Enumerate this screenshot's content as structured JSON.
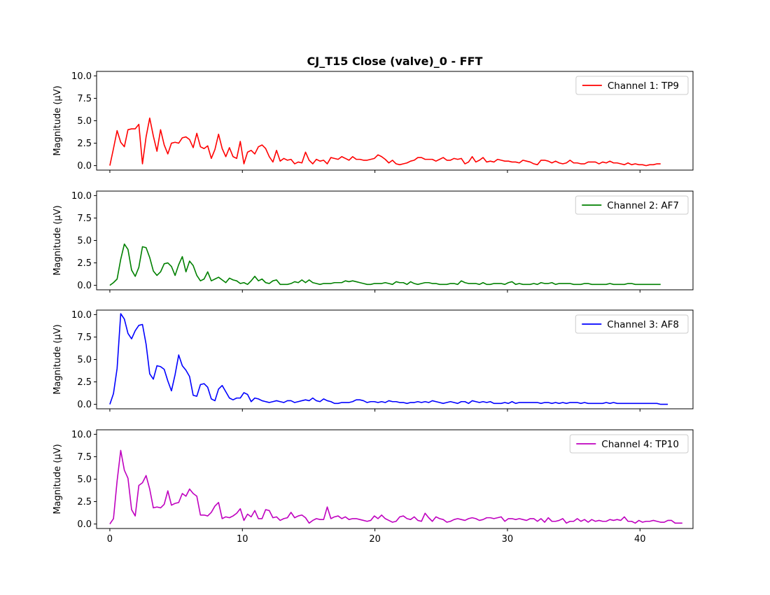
{
  "chart_data": {
    "type": "line",
    "title": "CJ_T15 Close (valve)_0 - FFT",
    "ylabel": "Magnitude (μV)",
    "xlabel": "",
    "xlim": [
      -1.0,
      44.0
    ],
    "ylim": [
      -0.5,
      10.5
    ],
    "xticks": [
      0,
      10,
      20,
      30,
      40
    ],
    "yticks": [
      0.0,
      2.5,
      5.0,
      7.5,
      10.0
    ],
    "xtick_labels": [
      "0",
      "10",
      "20",
      "30",
      "40"
    ],
    "ytick_labels": [
      "0.0",
      "2.5",
      "5.0",
      "7.5",
      "10.0"
    ],
    "x_step": 0.2734,
    "grid": false,
    "legend_position": "upper right",
    "subplots": [
      {
        "legend": "Channel 1: TP9",
        "color": "#ff0000",
        "values": [
          0.0,
          1.9,
          3.9,
          2.6,
          2.1,
          4.0,
          4.1,
          4.1,
          4.6,
          0.2,
          3.2,
          5.3,
          3.3,
          1.6,
          4.0,
          2.3,
          1.3,
          2.5,
          2.6,
          2.5,
          3.1,
          3.2,
          2.9,
          2.0,
          3.6,
          2.1,
          1.9,
          2.2,
          0.8,
          1.8,
          3.5,
          1.9,
          1.0,
          2.0,
          1.0,
          0.8,
          2.7,
          0.2,
          1.5,
          1.7,
          1.3,
          2.1,
          2.3,
          1.9,
          1.0,
          0.4,
          1.7,
          0.5,
          0.8,
          0.6,
          0.7,
          0.2,
          0.4,
          0.3,
          1.5,
          0.6,
          0.2,
          0.7,
          0.5,
          0.6,
          0.2,
          0.9,
          0.8,
          0.7,
          1.0,
          0.8,
          0.6,
          1.0,
          0.7,
          0.7,
          0.6,
          0.6,
          0.7,
          0.8,
          1.2,
          1.0,
          0.7,
          0.3,
          0.6,
          0.2,
          0.1,
          0.2,
          0.3,
          0.5,
          0.6,
          0.9,
          0.9,
          0.7,
          0.7,
          0.7,
          0.5,
          0.7,
          0.9,
          0.6,
          0.6,
          0.8,
          0.7,
          0.8,
          0.2,
          0.4,
          1.0,
          0.4,
          0.6,
          0.9,
          0.4,
          0.5,
          0.4,
          0.7,
          0.6,
          0.5,
          0.5,
          0.4,
          0.4,
          0.3,
          0.6,
          0.5,
          0.4,
          0.2,
          0.1,
          0.6,
          0.6,
          0.5,
          0.3,
          0.5,
          0.3,
          0.2,
          0.3,
          0.6,
          0.3,
          0.3,
          0.2,
          0.2,
          0.4,
          0.4,
          0.4,
          0.2,
          0.4,
          0.3,
          0.5,
          0.3,
          0.3,
          0.2,
          0.1,
          0.3,
          0.1,
          0.2,
          0.1,
          0.1,
          0.0,
          0.1,
          0.1,
          0.2,
          0.2
        ]
      },
      {
        "legend": "Channel 2: AF7",
        "color": "#008000",
        "values": [
          0.0,
          0.3,
          0.7,
          2.9,
          4.6,
          4.0,
          1.7,
          1.0,
          2.0,
          4.3,
          4.2,
          3.1,
          1.6,
          1.1,
          1.5,
          2.4,
          2.5,
          2.1,
          1.1,
          2.3,
          3.2,
          1.5,
          2.7,
          2.2,
          1.1,
          0.5,
          0.7,
          1.5,
          0.5,
          0.7,
          0.9,
          0.6,
          0.3,
          0.8,
          0.6,
          0.5,
          0.2,
          0.3,
          0.1,
          0.5,
          1.0,
          0.5,
          0.7,
          0.3,
          0.2,
          0.5,
          0.6,
          0.1,
          0.1,
          0.1,
          0.2,
          0.4,
          0.3,
          0.6,
          0.3,
          0.6,
          0.3,
          0.2,
          0.1,
          0.2,
          0.2,
          0.2,
          0.3,
          0.3,
          0.3,
          0.5,
          0.4,
          0.5,
          0.4,
          0.3,
          0.2,
          0.1,
          0.1,
          0.2,
          0.2,
          0.2,
          0.3,
          0.2,
          0.1,
          0.4,
          0.3,
          0.3,
          0.1,
          0.4,
          0.2,
          0.1,
          0.2,
          0.3,
          0.3,
          0.2,
          0.2,
          0.1,
          0.1,
          0.1,
          0.2,
          0.2,
          0.1,
          0.5,
          0.3,
          0.2,
          0.2,
          0.2,
          0.1,
          0.3,
          0.1,
          0.1,
          0.2,
          0.2,
          0.2,
          0.1,
          0.3,
          0.4,
          0.1,
          0.2,
          0.1,
          0.1,
          0.1,
          0.2,
          0.1,
          0.3,
          0.2,
          0.2,
          0.3,
          0.1,
          0.2,
          0.2,
          0.2,
          0.2,
          0.1,
          0.1,
          0.1,
          0.2,
          0.2,
          0.1,
          0.1,
          0.1,
          0.1,
          0.1,
          0.2,
          0.1,
          0.1,
          0.1,
          0.1,
          0.2,
          0.2,
          0.1,
          0.1,
          0.1,
          0.1,
          0.1,
          0.1,
          0.1,
          0.1
        ]
      },
      {
        "legend": "Channel 3: AF8",
        "color": "#0000ff",
        "values": [
          0.0,
          1.2,
          4.0,
          10.1,
          9.5,
          7.9,
          7.3,
          8.2,
          8.8,
          8.9,
          6.7,
          3.4,
          2.8,
          4.3,
          4.2,
          3.9,
          2.6,
          1.5,
          3.3,
          5.5,
          4.3,
          3.8,
          3.1,
          1.0,
          0.9,
          2.2,
          2.3,
          1.9,
          0.6,
          0.4,
          1.7,
          2.1,
          1.4,
          0.7,
          0.5,
          0.7,
          0.7,
          1.3,
          1.1,
          0.3,
          0.7,
          0.6,
          0.4,
          0.3,
          0.2,
          0.3,
          0.4,
          0.3,
          0.2,
          0.4,
          0.4,
          0.2,
          0.3,
          0.4,
          0.5,
          0.4,
          0.7,
          0.4,
          0.3,
          0.6,
          0.4,
          0.3,
          0.1,
          0.1,
          0.2,
          0.2,
          0.2,
          0.3,
          0.5,
          0.5,
          0.4,
          0.2,
          0.3,
          0.3,
          0.2,
          0.3,
          0.2,
          0.4,
          0.3,
          0.3,
          0.2,
          0.2,
          0.1,
          0.2,
          0.2,
          0.3,
          0.2,
          0.3,
          0.2,
          0.4,
          0.3,
          0.2,
          0.1,
          0.2,
          0.3,
          0.2,
          0.1,
          0.3,
          0.3,
          0.1,
          0.4,
          0.3,
          0.2,
          0.3,
          0.2,
          0.3,
          0.1,
          0.1,
          0.1,
          0.2,
          0.1,
          0.3,
          0.1,
          0.2,
          0.2,
          0.2,
          0.2,
          0.2,
          0.2,
          0.1,
          0.2,
          0.2,
          0.1,
          0.2,
          0.1,
          0.2,
          0.1,
          0.2,
          0.2,
          0.2,
          0.1,
          0.2,
          0.1,
          0.1,
          0.1,
          0.1,
          0.1,
          0.2,
          0.1,
          0.2,
          0.1,
          0.1,
          0.1,
          0.1,
          0.1,
          0.1,
          0.1,
          0.1,
          0.1,
          0.1,
          0.1,
          0.1,
          0.0,
          0.0,
          0.0
        ]
      },
      {
        "legend": "Channel 4: TP10",
        "color": "#bf00bf",
        "values": [
          0.0,
          0.6,
          4.8,
          8.2,
          6.0,
          5.1,
          1.6,
          0.9,
          4.3,
          4.6,
          5.4,
          3.9,
          1.8,
          1.9,
          1.8,
          2.2,
          3.7,
          2.1,
          2.3,
          2.4,
          3.4,
          3.1,
          3.9,
          3.4,
          3.1,
          1.0,
          1.0,
          0.9,
          1.3,
          2.0,
          2.4,
          0.6,
          0.8,
          0.7,
          0.9,
          1.2,
          1.7,
          0.4,
          1.1,
          0.8,
          1.5,
          0.6,
          0.6,
          1.6,
          1.5,
          0.7,
          0.8,
          0.4,
          0.6,
          0.7,
          1.3,
          0.7,
          0.9,
          1.0,
          0.7,
          0.1,
          0.4,
          0.6,
          0.5,
          0.5,
          1.9,
          0.6,
          0.8,
          0.9,
          0.6,
          0.8,
          0.5,
          0.6,
          0.6,
          0.5,
          0.4,
          0.3,
          0.4,
          0.9,
          0.6,
          1.0,
          0.6,
          0.4,
          0.2,
          0.3,
          0.8,
          0.9,
          0.6,
          0.5,
          0.8,
          0.4,
          0.3,
          1.2,
          0.7,
          0.3,
          0.8,
          0.6,
          0.5,
          0.2,
          0.3,
          0.5,
          0.6,
          0.5,
          0.4,
          0.6,
          0.7,
          0.6,
          0.4,
          0.5,
          0.7,
          0.7,
          0.6,
          0.7,
          0.8,
          0.3,
          0.6,
          0.6,
          0.5,
          0.6,
          0.5,
          0.4,
          0.6,
          0.6,
          0.3,
          0.6,
          0.2,
          0.7,
          0.3,
          0.3,
          0.4,
          0.6,
          0.1,
          0.3,
          0.3,
          0.6,
          0.3,
          0.5,
          0.2,
          0.5,
          0.3,
          0.4,
          0.3,
          0.3,
          0.5,
          0.4,
          0.5,
          0.4,
          0.8,
          0.3,
          0.3,
          0.1,
          0.4,
          0.2,
          0.3,
          0.3,
          0.4,
          0.3,
          0.2,
          0.2,
          0.4,
          0.4,
          0.1,
          0.1,
          0.1
        ]
      }
    ]
  }
}
